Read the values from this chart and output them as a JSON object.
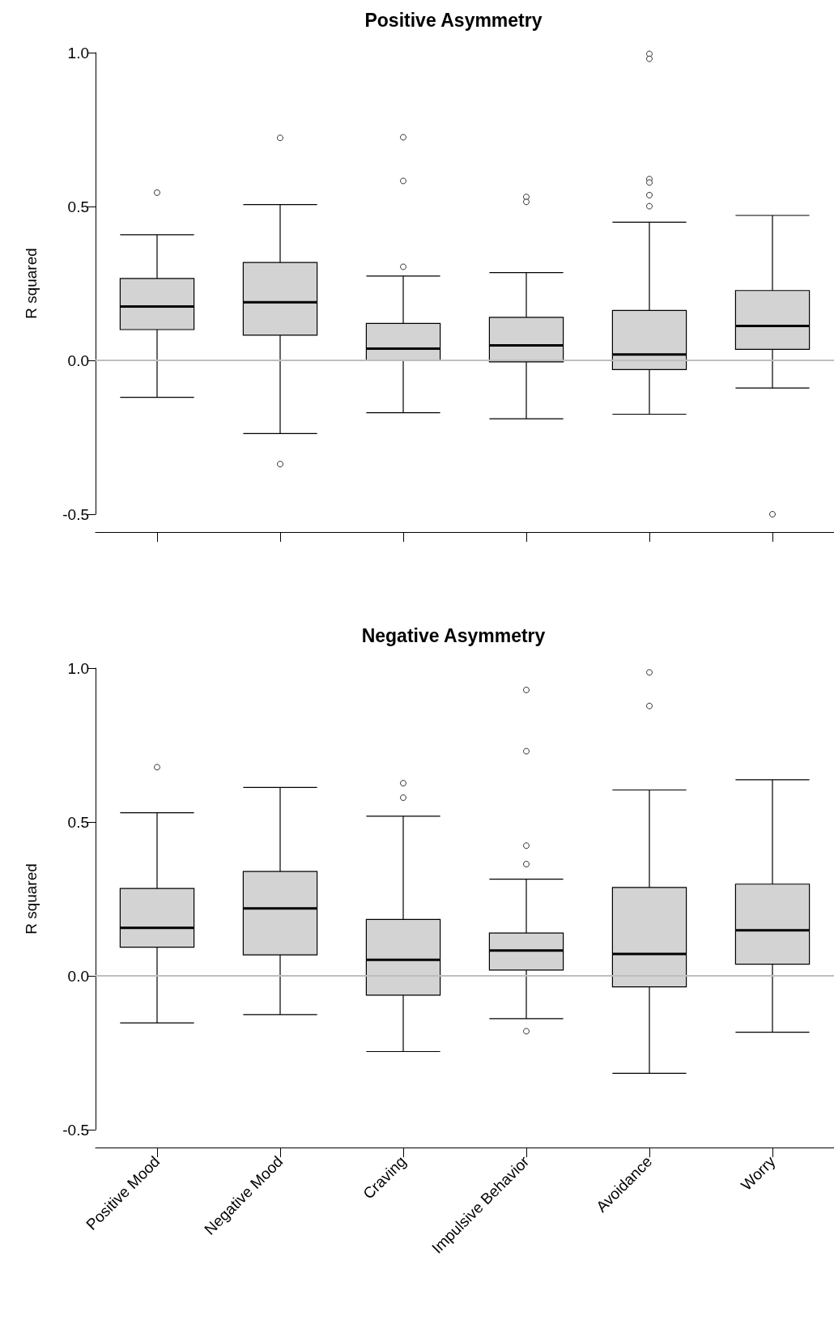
{
  "chart_data": [
    {
      "type": "box",
      "title": "Positive Asymmetry",
      "ylabel": "R squared",
      "categories": [
        null,
        null,
        null,
        null,
        null,
        null
      ],
      "tick_labels": "y",
      "grid": false,
      "color": "#d3d3d3",
      "ylim": [
        -0.5,
        1.0
      ],
      "yticks": [
        {
          "value": -0.5,
          "label": "-0.5"
        },
        {
          "value": 0,
          "label": "0.0"
        },
        {
          "value": 0.5,
          "label": "0.5"
        },
        {
          "value": 1,
          "label": "1.0"
        }
      ],
      "ref_lines": [
        {
          "axis": "y",
          "value": 0,
          "color": "#bebebe"
        }
      ],
      "boxes": [
        {
          "low": -0.12,
          "q1": 0.1,
          "median": 0.175,
          "q3": 0.266,
          "high": 0.408,
          "outliers": [
            0.545
          ]
        },
        {
          "low": -0.238,
          "q1": 0.082,
          "median": 0.189,
          "q3": 0.318,
          "high": 0.506,
          "outliers": [
            0.723,
            -0.337
          ]
        },
        {
          "low": -0.17,
          "q1": 0.0,
          "median": 0.038,
          "q3": 0.12,
          "high": 0.274,
          "outliers": [
            0.725,
            0.583,
            0.304
          ]
        },
        {
          "low": -0.19,
          "q1": -0.005,
          "median": 0.049,
          "q3": 0.14,
          "high": 0.285,
          "outliers": [
            0.531,
            0.515
          ]
        },
        {
          "low": -0.175,
          "q1": -0.03,
          "median": 0.019,
          "q3": 0.162,
          "high": 0.449,
          "outliers": [
            0.996,
            0.98,
            0.589,
            0.578,
            0.537,
            0.501
          ]
        },
        {
          "low": -0.09,
          "q1": 0.036,
          "median": 0.112,
          "q3": 0.227,
          "high": 0.471,
          "outliers": [
            -0.5
          ]
        }
      ]
    },
    {
      "type": "box",
      "title": "Negative Asymmetry",
      "ylabel": "R squared",
      "categories": [
        "Positive Mood",
        "Negative Mood",
        "Craving",
        "Impulsive Behavior",
        "Avoidance",
        "Worry"
      ],
      "grid": false,
      "color": "#d3d3d3",
      "ylim": [
        -0.5,
        1.0
      ],
      "yticks": [
        {
          "value": -0.5,
          "label": "-0.5"
        },
        {
          "value": 0,
          "label": "0.0"
        },
        {
          "value": 0.5,
          "label": "0.5"
        },
        {
          "value": 1,
          "label": "1.0"
        }
      ],
      "ref_lines": [
        {
          "axis": "y",
          "value": 0,
          "color": "#bebebe"
        }
      ],
      "boxes": [
        {
          "low": -0.153,
          "q1": 0.093,
          "median": 0.156,
          "q3": 0.284,
          "high": 0.53,
          "outliers": [
            0.678
          ]
        },
        {
          "low": -0.126,
          "q1": 0.068,
          "median": 0.219,
          "q3": 0.339,
          "high": 0.612
        },
        {
          "low": -0.246,
          "q1": -0.063,
          "median": 0.052,
          "q3": 0.183,
          "high": 0.519,
          "outliers": [
            0.626,
            0.579
          ]
        },
        {
          "low": -0.139,
          "q1": 0.019,
          "median": 0.082,
          "q3": 0.139,
          "high": 0.314,
          "outliers": [
            0.929,
            0.73,
            0.423,
            0.363,
            -0.18
          ]
        },
        {
          "low": -0.317,
          "q1": -0.036,
          "median": 0.071,
          "q3": 0.287,
          "high": 0.604,
          "outliers": [
            0.986,
            0.877
          ]
        },
        {
          "low": -0.183,
          "q1": 0.038,
          "median": 0.148,
          "q3": 0.298,
          "high": 0.637
        }
      ]
    }
  ]
}
